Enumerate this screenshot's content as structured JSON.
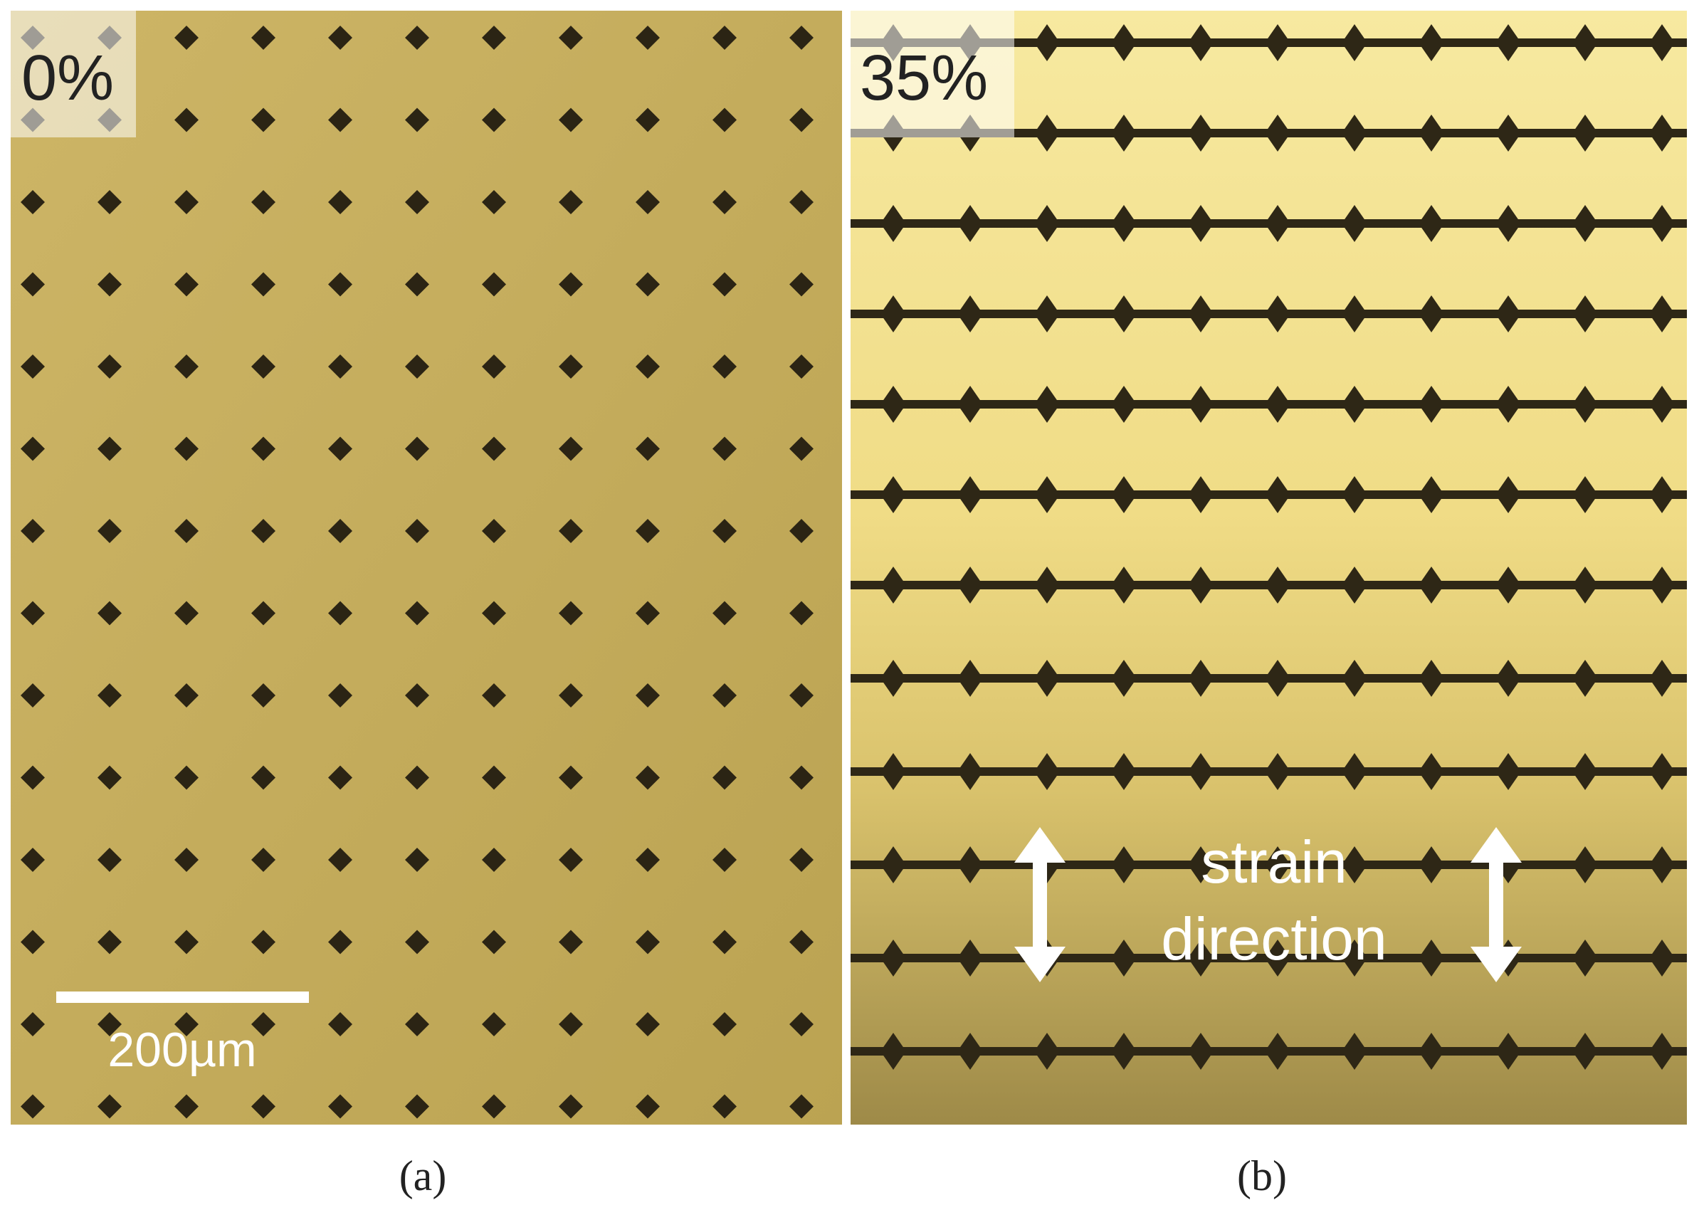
{
  "panels": [
    {
      "label": "0%",
      "scale_bar": "200µm",
      "caption": "(a)"
    },
    {
      "label": "35%",
      "annotation": [
        "strain",
        "direction"
      ],
      "caption": "(b)"
    }
  ]
}
